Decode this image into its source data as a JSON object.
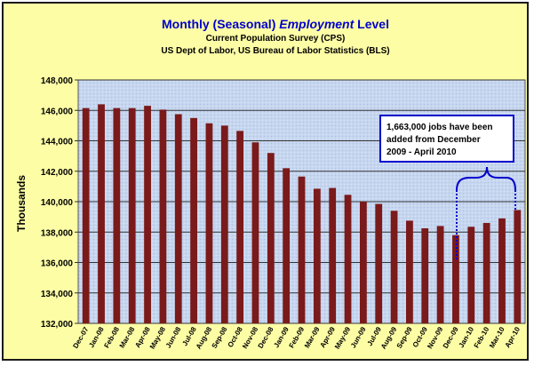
{
  "chart_data": {
    "type": "bar",
    "title_prefix": "Monthly (Seasonal) ",
    "title_emphasis": "Employment",
    "title_suffix": " Level",
    "subtitle_1": "Current Population Survey (CPS)",
    "subtitle_2": "US Dept of Labor, US Bureau of Labor Statistics (BLS)",
    "ylabel": "Thousands",
    "xlabel": "",
    "ylim": [
      132000,
      148000
    ],
    "yticks": [
      132000,
      134000,
      136000,
      138000,
      140000,
      142000,
      144000,
      146000,
      148000
    ],
    "ytick_labels": [
      "132,000",
      "134,000",
      "136,000",
      "138,000",
      "140,000",
      "142,000",
      "144,000",
      "146,000",
      "148,000"
    ],
    "categories": [
      "Dec-07",
      "Jan-08",
      "Feb-08",
      "Mar-08",
      "Apr-08",
      "May-08",
      "Jun-08",
      "Jul-08",
      "Aug-08",
      "Sep-08",
      "Oct-08",
      "Nov-08",
      "Dec-08",
      "Jan-09",
      "Feb-09",
      "Mar-09",
      "Apr-09",
      "May-09",
      "Jun-09",
      "Jul-09",
      "Aug-09",
      "Sep-09",
      "Oct-09",
      "Nov-09",
      "Dec-09",
      "Jan-10",
      "Feb-10",
      "Mar-10",
      "Apr-10"
    ],
    "values": [
      146150,
      146400,
      146150,
      146150,
      146300,
      146050,
      145750,
      145500,
      145150,
      145000,
      144650,
      143900,
      143200,
      142200,
      141650,
      140850,
      140900,
      140450,
      140000,
      139850,
      139400,
      138750,
      138250,
      138400,
      137800,
      138350,
      138600,
      138900,
      139450
    ],
    "annotation": [
      "1,663,000 jobs have been",
      "added from December",
      "2009 - April 2010"
    ],
    "bar_color": "#7a1a1a",
    "plot_background": "#c5d8f2",
    "grid": true,
    "accent_color": "#0000cc"
  }
}
